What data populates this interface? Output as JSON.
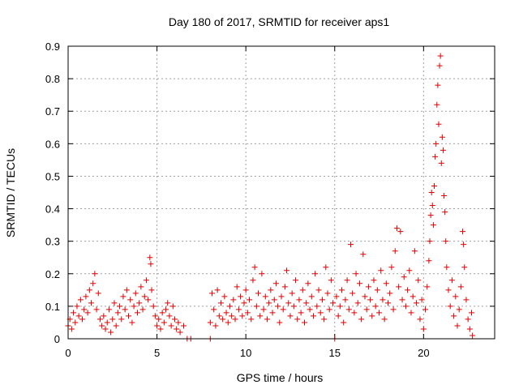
{
  "chart_data": {
    "type": "scatter",
    "title": "Day 180 of 2017, SRMTID for receiver aps1",
    "xlabel": "GPS time / hours",
    "ylabel": "SRMTID / TECUs",
    "xlim": [
      0,
      24
    ],
    "ylim": [
      0,
      0.9
    ],
    "x_ticks": [
      0,
      5,
      10,
      15,
      20
    ],
    "x_tick_labels": [
      "0",
      "5",
      "10",
      "15",
      "20"
    ],
    "y_ticks": [
      0,
      0.1,
      0.2,
      0.3,
      0.4,
      0.5,
      0.6,
      0.7,
      0.8,
      0.9
    ],
    "y_tick_labels": [
      "0",
      "0.1",
      "0.2",
      "0.3",
      "0.4",
      "0.5",
      "0.6",
      "0.7",
      "0.8",
      "0.9"
    ],
    "grid": true,
    "marker": "plus",
    "color": "#e00000",
    "series": [
      {
        "name": "aps1",
        "points": [
          [
            0.0,
            0.04
          ],
          [
            0.1,
            0.06
          ],
          [
            0.2,
            0.03
          ],
          [
            0.3,
            0.08
          ],
          [
            0.4,
            0.05
          ],
          [
            0.5,
            0.1
          ],
          [
            0.6,
            0.07
          ],
          [
            0.7,
            0.12
          ],
          [
            0.8,
            0.06
          ],
          [
            0.9,
            0.09
          ],
          [
            1.0,
            0.13
          ],
          [
            1.1,
            0.08
          ],
          [
            1.2,
            0.15
          ],
          [
            1.3,
            0.11
          ],
          [
            1.4,
            0.17
          ],
          [
            1.5,
            0.2
          ],
          [
            1.6,
            0.09
          ],
          [
            1.7,
            0.14
          ],
          [
            1.8,
            0.06
          ],
          [
            1.9,
            0.04
          ],
          [
            2.0,
            0.07
          ],
          [
            2.1,
            0.03
          ],
          [
            2.2,
            0.05
          ],
          [
            2.3,
            0.09
          ],
          [
            2.4,
            0.02
          ],
          [
            2.5,
            0.06
          ],
          [
            2.6,
            0.11
          ],
          [
            2.7,
            0.04
          ],
          [
            2.8,
            0.08
          ],
          [
            2.9,
            0.1
          ],
          [
            3.0,
            0.06
          ],
          [
            3.1,
            0.13
          ],
          [
            3.2,
            0.09
          ],
          [
            3.3,
            0.15
          ],
          [
            3.4,
            0.07
          ],
          [
            3.5,
            0.12
          ],
          [
            3.6,
            0.05
          ],
          [
            3.7,
            0.1
          ],
          [
            3.8,
            0.14
          ],
          [
            3.9,
            0.08
          ],
          [
            4.0,
            0.11
          ],
          [
            4.1,
            0.16
          ],
          [
            4.2,
            0.09
          ],
          [
            4.3,
            0.13
          ],
          [
            4.4,
            0.18
          ],
          [
            4.5,
            0.12
          ],
          [
            4.6,
            0.25
          ],
          [
            4.65,
            0.23
          ],
          [
            4.7,
            0.15
          ],
          [
            4.8,
            0.1
          ],
          [
            4.9,
            0.07
          ],
          [
            5.0,
            0.04
          ],
          [
            5.1,
            0.06
          ],
          [
            5.2,
            0.03
          ],
          [
            5.3,
            0.08
          ],
          [
            5.4,
            0.05
          ],
          [
            5.5,
            0.09
          ],
          [
            5.6,
            0.11
          ],
          [
            5.7,
            0.07
          ],
          [
            5.8,
            0.04
          ],
          [
            5.9,
            0.1
          ],
          [
            6.0,
            0.06
          ],
          [
            6.1,
            0.03
          ],
          [
            6.2,
            0.05
          ],
          [
            6.3,
            0.02
          ],
          [
            6.5,
            0.04
          ],
          [
            6.7,
            0.0
          ],
          [
            6.9,
            0.0
          ],
          [
            8.0,
            0.0
          ],
          [
            8.0,
            0.05
          ],
          [
            8.1,
            0.14
          ],
          [
            8.2,
            0.09
          ],
          [
            8.3,
            0.04
          ],
          [
            8.4,
            0.15
          ],
          [
            8.5,
            0.07
          ],
          [
            8.6,
            0.11
          ],
          [
            8.7,
            0.06
          ],
          [
            8.8,
            0.13
          ],
          [
            8.9,
            0.08
          ],
          [
            9.0,
            0.05
          ],
          [
            9.1,
            0.1
          ],
          [
            9.2,
            0.07
          ],
          [
            9.3,
            0.12
          ],
          [
            9.4,
            0.06
          ],
          [
            9.5,
            0.16
          ],
          [
            9.6,
            0.09
          ],
          [
            9.7,
            0.13
          ],
          [
            9.8,
            0.07
          ],
          [
            9.9,
            0.11
          ],
          [
            10.0,
            0.15
          ],
          [
            10.1,
            0.08
          ],
          [
            10.2,
            0.12
          ],
          [
            10.3,
            0.06
          ],
          [
            10.4,
            0.18
          ],
          [
            10.5,
            0.22
          ],
          [
            10.6,
            0.1
          ],
          [
            10.7,
            0.14
          ],
          [
            10.8,
            0.07
          ],
          [
            10.9,
            0.2
          ],
          [
            11.0,
            0.09
          ],
          [
            11.1,
            0.13
          ],
          [
            11.2,
            0.06
          ],
          [
            11.3,
            0.11
          ],
          [
            11.4,
            0.15
          ],
          [
            11.5,
            0.08
          ],
          [
            11.6,
            0.12
          ],
          [
            11.7,
            0.17
          ],
          [
            11.8,
            0.1
          ],
          [
            11.9,
            0.05
          ],
          [
            12.0,
            0.13
          ],
          [
            12.1,
            0.09
          ],
          [
            12.2,
            0.16
          ],
          [
            12.3,
            0.21
          ],
          [
            12.4,
            0.11
          ],
          [
            12.5,
            0.07
          ],
          [
            12.6,
            0.14
          ],
          [
            12.7,
            0.1
          ],
          [
            12.8,
            0.18
          ],
          [
            12.9,
            0.06
          ],
          [
            13.0,
            0.12
          ],
          [
            13.1,
            0.08
          ],
          [
            13.2,
            0.15
          ],
          [
            13.3,
            0.05
          ],
          [
            13.4,
            0.11
          ],
          [
            13.5,
            0.17
          ],
          [
            13.6,
            0.09
          ],
          [
            13.7,
            0.13
          ],
          [
            13.8,
            0.07
          ],
          [
            13.9,
            0.2
          ],
          [
            14.0,
            0.1
          ],
          [
            14.1,
            0.15
          ],
          [
            14.2,
            0.08
          ],
          [
            14.3,
            0.12
          ],
          [
            14.4,
            0.06
          ],
          [
            14.5,
            0.22
          ],
          [
            14.6,
            0.14
          ],
          [
            14.7,
            0.09
          ],
          [
            14.8,
            0.18
          ],
          [
            14.9,
            0.11
          ],
          [
            15.0,
            0.0
          ],
          [
            15.1,
            0.13
          ],
          [
            15.2,
            0.07
          ],
          [
            15.3,
            0.1
          ],
          [
            15.4,
            0.15
          ],
          [
            15.5,
            0.05
          ],
          [
            15.6,
            0.12
          ],
          [
            15.7,
            0.18
          ],
          [
            15.8,
            0.09
          ],
          [
            15.9,
            0.29
          ],
          [
            16.0,
            0.14
          ],
          [
            16.1,
            0.08
          ],
          [
            16.2,
            0.2
          ],
          [
            16.3,
            0.11
          ],
          [
            16.4,
            0.17
          ],
          [
            16.5,
            0.06
          ],
          [
            16.6,
            0.26
          ],
          [
            16.7,
            0.13
          ],
          [
            16.8,
            0.09
          ],
          [
            16.9,
            0.16
          ],
          [
            17.0,
            0.12
          ],
          [
            17.1,
            0.07
          ],
          [
            17.2,
            0.18
          ],
          [
            17.3,
            0.1
          ],
          [
            17.4,
            0.15
          ],
          [
            17.5,
            0.08
          ],
          [
            17.6,
            0.21
          ],
          [
            17.7,
            0.12
          ],
          [
            17.8,
            0.06
          ],
          [
            17.9,
            0.17
          ],
          [
            18.0,
            0.11
          ],
          [
            18.1,
            0.14
          ],
          [
            18.2,
            0.22
          ],
          [
            18.3,
            0.09
          ],
          [
            18.4,
            0.27
          ],
          [
            18.5,
            0.34
          ],
          [
            18.6,
            0.16
          ],
          [
            18.7,
            0.33
          ],
          [
            18.8,
            0.12
          ],
          [
            18.9,
            0.19
          ],
          [
            19.0,
            0.1
          ],
          [
            19.1,
            0.15
          ],
          [
            19.2,
            0.21
          ],
          [
            19.3,
            0.08
          ],
          [
            19.4,
            0.13
          ],
          [
            19.5,
            0.27
          ],
          [
            19.6,
            0.11
          ],
          [
            19.7,
            0.18
          ],
          [
            19.8,
            0.06
          ],
          [
            19.9,
            0.12
          ],
          [
            20.0,
            0.03
          ],
          [
            20.1,
            0.09
          ],
          [
            20.2,
            0.16
          ],
          [
            20.3,
            0.24
          ],
          [
            20.35,
            0.3
          ],
          [
            20.4,
            0.38
          ],
          [
            20.45,
            0.45
          ],
          [
            20.5,
            0.41
          ],
          [
            20.55,
            0.35
          ],
          [
            20.6,
            0.47
          ],
          [
            20.65,
            0.56
          ],
          [
            20.7,
            0.6
          ],
          [
            20.75,
            0.72
          ],
          [
            20.8,
            0.78
          ],
          [
            20.85,
            0.66
          ],
          [
            20.9,
            0.84
          ],
          [
            20.95,
            0.87
          ],
          [
            21.0,
            0.54
          ],
          [
            21.05,
            0.62
          ],
          [
            21.1,
            0.58
          ],
          [
            21.15,
            0.44
          ],
          [
            21.2,
            0.39
          ],
          [
            21.25,
            0.3
          ],
          [
            21.3,
            0.22
          ],
          [
            21.4,
            0.15
          ],
          [
            21.5,
            0.1
          ],
          [
            21.6,
            0.18
          ],
          [
            21.7,
            0.07
          ],
          [
            21.8,
            0.13
          ],
          [
            21.9,
            0.04
          ],
          [
            22.0,
            0.09
          ],
          [
            22.1,
            0.16
          ],
          [
            22.2,
            0.33
          ],
          [
            22.25,
            0.29
          ],
          [
            22.3,
            0.22
          ],
          [
            22.4,
            0.12
          ],
          [
            22.5,
            0.06
          ],
          [
            22.6,
            0.03
          ],
          [
            22.7,
            0.08
          ],
          [
            22.75,
            0.01
          ]
        ]
      }
    ]
  }
}
